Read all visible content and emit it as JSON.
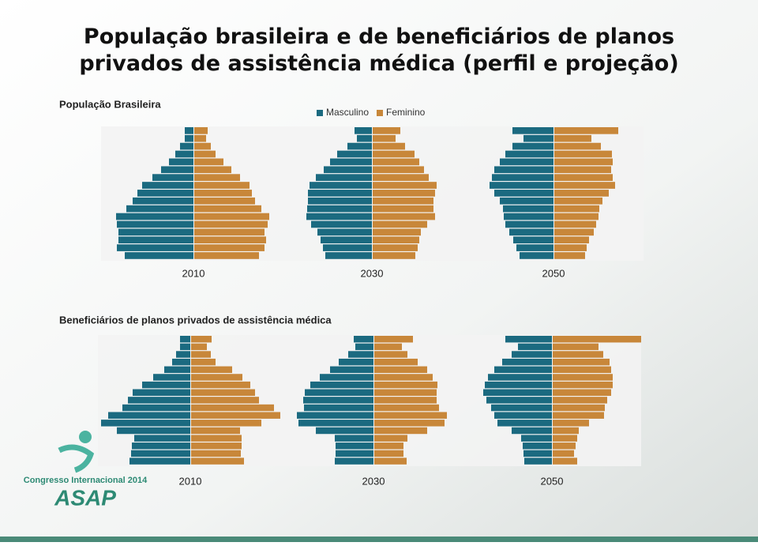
{
  "title": "População brasileira e de beneficiários de planos privados de assistência médica (perfil e  projeção)",
  "logo": {
    "caption": "Congresso Internacional 2014",
    "name": "ASAP"
  },
  "chart_data": [
    {
      "type": "pyramid",
      "title": "População Brasileira",
      "categories": [
        "2010",
        "2030",
        "2050"
      ],
      "series": [
        {
          "name": "Masculino",
          "color": "#1b6a80",
          "values": [
            [
              11,
              11,
              17,
              23,
              31,
              41,
              52,
              65,
              71,
              77,
              85,
              98,
              97,
              95,
              95,
              97,
              87
            ],
            [
              22,
              19,
              31,
              44,
              53,
              61,
              71,
              79,
              81,
              81,
              82,
              83,
              77,
              69,
              65,
              62,
              59
            ],
            [
              52,
              38,
              52,
              61,
              68,
              75,
              78,
              81,
              75,
              68,
              64,
              63,
              61,
              56,
              51,
              47,
              43
            ]
          ]
        },
        {
          "name": "Feminino",
          "color": "#c8873a",
          "values": [
            [
              17,
              15,
              21,
              27,
              37,
              47,
              58,
              70,
              73,
              77,
              85,
              95,
              93,
              89,
              91,
              89,
              82
            ],
            [
              35,
              29,
              41,
              53,
              59,
              65,
              71,
              81,
              79,
              77,
              77,
              79,
              69,
              61,
              59,
              57,
              54
            ],
            [
              81,
              47,
              59,
              73,
              74,
              72,
              74,
              77,
              69,
              61,
              57,
              56,
              53,
              50,
              44,
              41,
              39
            ]
          ]
        }
      ]
    },
    {
      "type": "pyramid",
      "title": "Beneficiários de planos privados de assistência médica",
      "categories": [
        "2010",
        "2030",
        "2050"
      ],
      "series": [
        {
          "color": "#1b6a80",
          "values": [
            [
              13,
              13,
              18,
              23,
              33,
              47,
              61,
              73,
              79,
              86,
              104,
              113,
              93,
              71,
              74,
              75,
              77
            ],
            [
              25,
              23,
              32,
              44,
              55,
              68,
              80,
              87,
              89,
              88,
              97,
              95,
              73,
              49,
              48,
              48,
              49
            ],
            [
              59,
              43,
              51,
              63,
              73,
              81,
              85,
              87,
              83,
              77,
              73,
              69,
              51,
              39,
              37,
              36,
              35
            ]
          ]
        },
        {
          "color": "#c8873a",
          "values": [
            [
              26,
              20,
              25,
              31,
              52,
              65,
              75,
              81,
              86,
              105,
              113,
              89,
              62,
              64,
              64,
              63,
              67
            ],
            [
              49,
              35,
              42,
              55,
              67,
              74,
              80,
              79,
              79,
              82,
              92,
              89,
              67,
              42,
              37,
              37,
              41
            ],
            [
              112,
              58,
              64,
              72,
              74,
              76,
              76,
              74,
              69,
              66,
              65,
              46,
              33,
              31,
              29,
              27,
              31
            ]
          ]
        }
      ]
    }
  ]
}
